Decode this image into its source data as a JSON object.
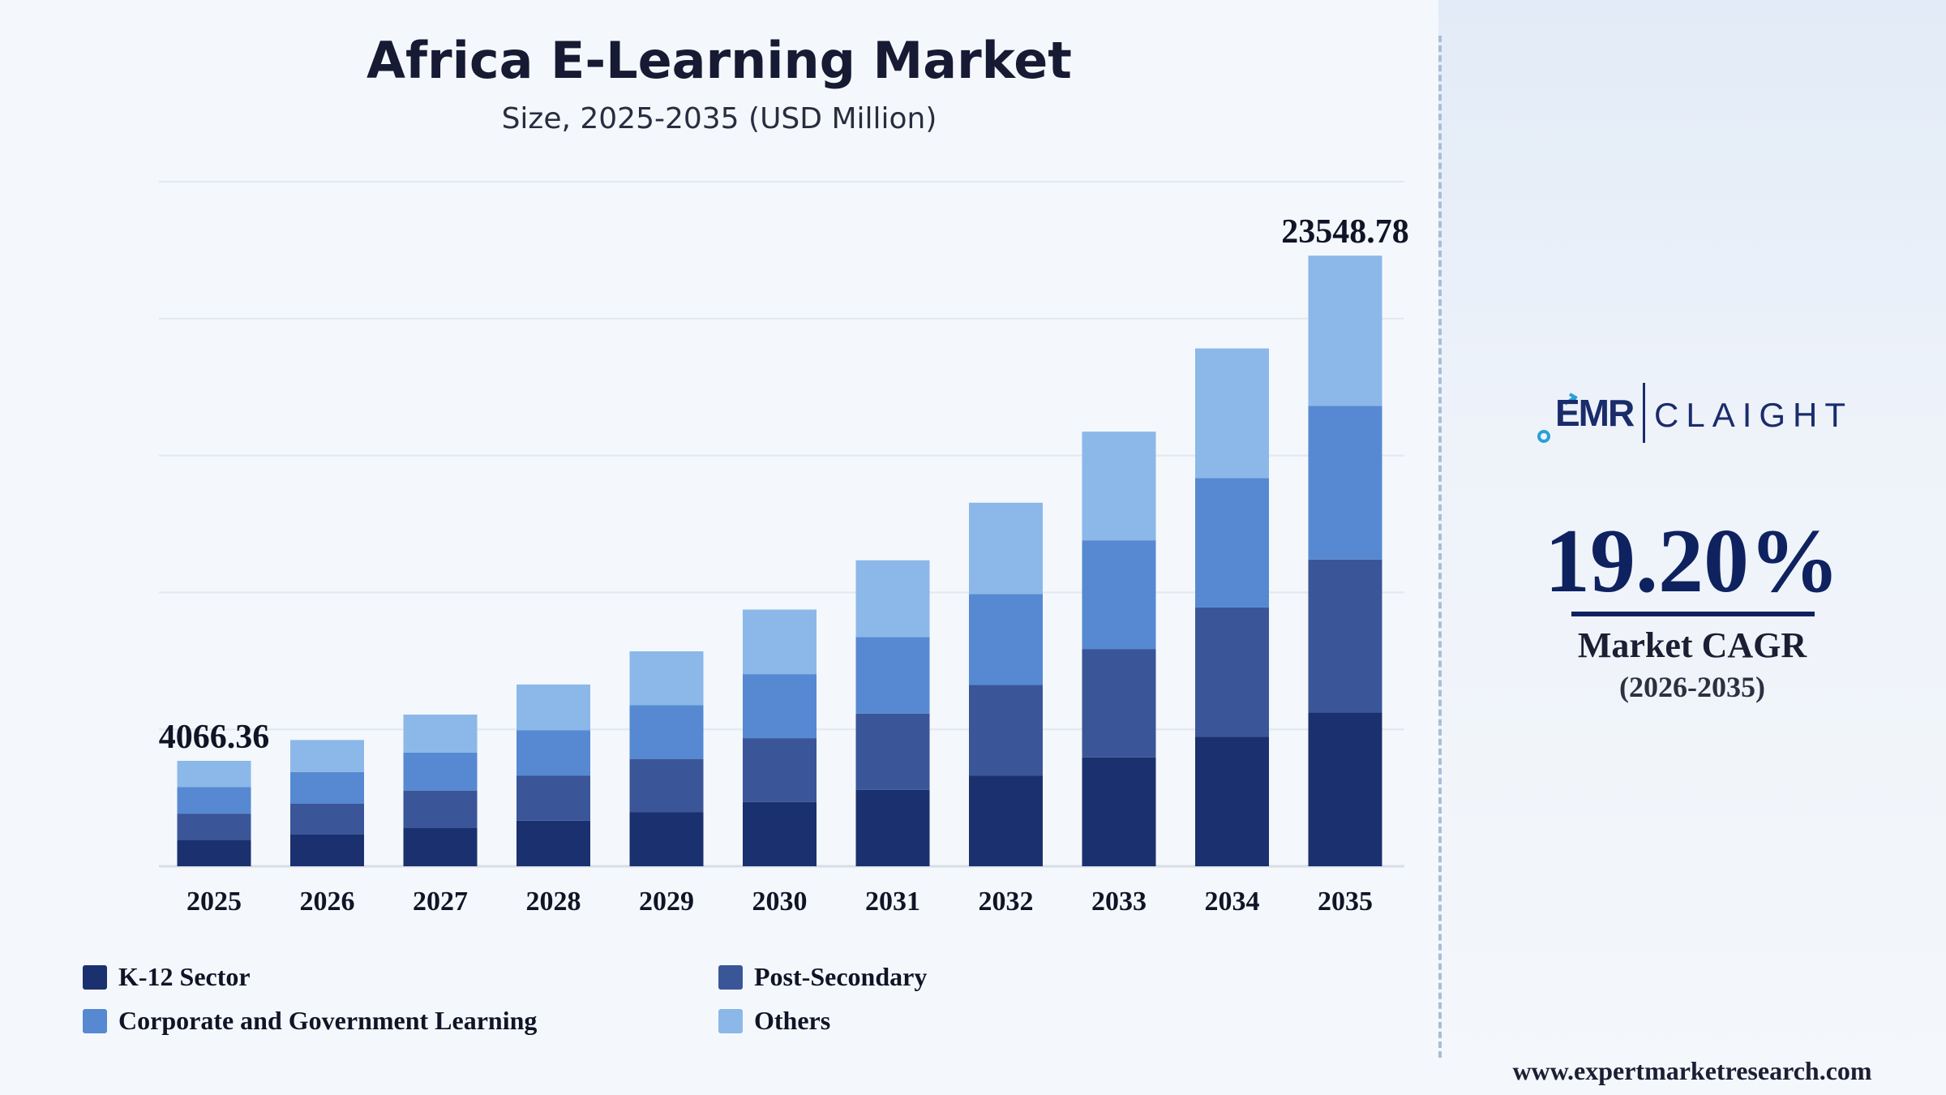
{
  "chart_data": {
    "type": "bar",
    "stacked": true,
    "title": "Africa E-Learning Market",
    "subtitle": "Size, 2025-2035 (USD Million)",
    "categories": [
      "2025",
      "2026",
      "2027",
      "2028",
      "2029",
      "2030",
      "2031",
      "2032",
      "2033",
      "2034",
      "2035"
    ],
    "series": [
      {
        "name": "K-12 Sector",
        "color": "#1b306e",
        "values": [
          1020,
          1220,
          1470,
          1760,
          2080,
          2480,
          2950,
          3500,
          4200,
          5000,
          5930
        ]
      },
      {
        "name": "Post-Secondary",
        "color": "#3a5698",
        "values": [
          1010,
          1200,
          1450,
          1740,
          2060,
          2460,
          2940,
          3490,
          4180,
          4980,
          5900
        ]
      },
      {
        "name": "Corporate and Government Learning",
        "color": "#5689d2",
        "values": [
          1020,
          1210,
          1460,
          1750,
          2070,
          2470,
          2950,
          3510,
          4190,
          4990,
          5920
        ]
      },
      {
        "name": "Others",
        "color": "#8bb8e8",
        "values": [
          1016.36,
          1240,
          1470,
          1760,
          2080,
          2490,
          2960,
          3520,
          4190,
          5000,
          5798.78
        ]
      }
    ],
    "data_labels": [
      {
        "category": "2025",
        "text": "4066.36"
      },
      {
        "category": "2035",
        "text": "23548.78"
      }
    ],
    "ylim": [
      0,
      26400
    ],
    "grid": true,
    "legend_position": "bottom-left"
  },
  "cagr": {
    "value": "19.20%",
    "label": "Market CAGR",
    "period": "(2026-2035)"
  },
  "logo": {
    "emr": "EMR",
    "claight": "CLAIGHT"
  },
  "website": "www.expertmarketresearch.com",
  "colors": {
    "accent": "#0f2260",
    "grid": "#e2e8f0"
  }
}
